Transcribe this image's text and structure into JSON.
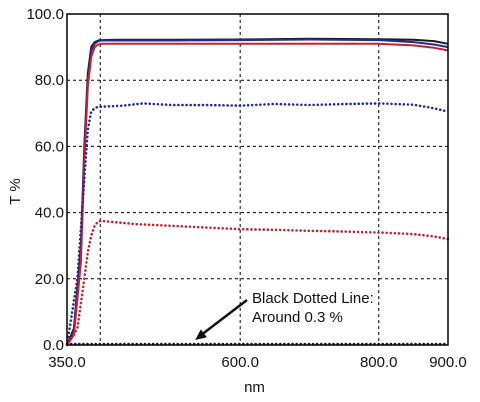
{
  "chart_data": {
    "type": "line",
    "xlabel": "nm",
    "ylabel": "T %",
    "xlim": [
      350,
      900
    ],
    "ylim": [
      0,
      100
    ],
    "grid": "dashed",
    "xticks": [
      {
        "value": 350,
        "label": "350.0"
      },
      {
        "value": 600,
        "label": "600.0"
      },
      {
        "value": 800,
        "label": "800.0"
      },
      {
        "value": 900,
        "label": "900.0"
      }
    ],
    "yticks": [
      {
        "value": 0,
        "label": "0.0"
      },
      {
        "value": 20,
        "label": "20.0"
      },
      {
        "value": 40,
        "label": "40.0"
      },
      {
        "value": 60,
        "label": "60.0"
      },
      {
        "value": 80,
        "label": "80.0"
      },
      {
        "value": 100,
        "label": "100.0"
      }
    ],
    "vgrid_at": [
      350,
      398,
      600,
      800,
      900
    ],
    "series": [
      {
        "color": "#1a1a1a",
        "style": "solid",
        "x": [
          350,
          360,
          370,
          375,
          380,
          385,
          390,
          395,
          400,
          420,
          500,
          600,
          700,
          800,
          850,
          880,
          900
        ],
        "y": [
          0,
          5,
          30,
          60,
          82,
          90,
          91.5,
          92,
          92.1,
          92.2,
          92.2,
          92.3,
          92.5,
          92.4,
          92.2,
          91.8,
          91
        ]
      },
      {
        "color": "#1f2f8f",
        "style": "solid",
        "x": [
          350,
          360,
          370,
          375,
          380,
          385,
          390,
          395,
          400,
          420,
          500,
          600,
          700,
          800,
          850,
          880,
          900
        ],
        "y": [
          0,
          4,
          28,
          58,
          80,
          89,
          91,
          91.8,
          92,
          92,
          92,
          92.1,
          92.3,
          92.1,
          91.5,
          90.8,
          90
        ]
      },
      {
        "color": "#c8202e",
        "style": "solid",
        "x": [
          350,
          360,
          370,
          375,
          380,
          385,
          390,
          395,
          400,
          420,
          500,
          600,
          700,
          800,
          850,
          880,
          900
        ],
        "y": [
          0,
          3,
          25,
          55,
          78,
          87,
          90,
          90.8,
          91,
          91,
          91,
          91,
          91,
          91,
          90.5,
          89.8,
          89
        ]
      },
      {
        "color": "#1f2f8f",
        "style": "dotted",
        "x": [
          350,
          365,
          375,
          380,
          385,
          390,
          395,
          400,
          430,
          460,
          500,
          550,
          600,
          650,
          700,
          750,
          800,
          850,
          880,
          900
        ],
        "y": [
          0,
          20,
          50,
          65,
          70.5,
          71.5,
          72,
          72,
          72.3,
          73,
          72.5,
          72.5,
          72.3,
          72.8,
          72.5,
          72.8,
          73,
          72.6,
          71.5,
          70.5
        ]
      },
      {
        "color": "#c8202e",
        "style": "dotted",
        "x": [
          350,
          365,
          375,
          380,
          385,
          390,
          395,
          400,
          450,
          500,
          550,
          600,
          650,
          700,
          750,
          800,
          850,
          880,
          900
        ],
        "y": [
          0,
          5,
          20,
          28,
          33,
          36,
          37.3,
          37.5,
          36.5,
          36,
          35.5,
          35,
          34.8,
          34.5,
          34.3,
          34,
          33.5,
          32.8,
          32
        ]
      },
      {
        "color": "#1a1a1a",
        "style": "dotted",
        "x": [
          350,
          400,
          500,
          600,
          700,
          800,
          900
        ],
        "y": [
          0.3,
          0.3,
          0.3,
          0.3,
          0.3,
          0.3,
          0.3
        ]
      }
    ],
    "annotations": [
      {
        "lines": [
          "Black Dotted Line:",
          "Around 0.3 %"
        ],
        "arrow_to": [
          535,
          1.5
        ]
      }
    ]
  }
}
